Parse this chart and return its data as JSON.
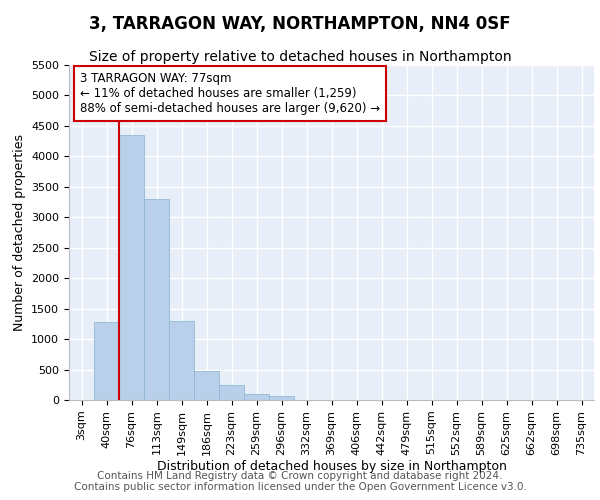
{
  "title": "3, TARRAGON WAY, NORTHAMPTON, NN4 0SF",
  "subtitle": "Size of property relative to detached houses in Northampton",
  "xlabel": "Distribution of detached houses by size in Northampton",
  "ylabel": "Number of detached properties",
  "categories": [
    "3sqm",
    "40sqm",
    "76sqm",
    "113sqm",
    "149sqm",
    "186sqm",
    "223sqm",
    "259sqm",
    "296sqm",
    "332sqm",
    "369sqm",
    "406sqm",
    "442sqm",
    "479sqm",
    "515sqm",
    "552sqm",
    "589sqm",
    "625sqm",
    "662sqm",
    "698sqm",
    "735sqm"
  ],
  "values": [
    0,
    1280,
    4350,
    3300,
    1290,
    480,
    240,
    100,
    70,
    0,
    0,
    0,
    0,
    0,
    0,
    0,
    0,
    0,
    0,
    0,
    0
  ],
  "bar_color": "#b8d0ea",
  "bar_edge_color": "#92b8d8",
  "vline_color": "#cc0000",
  "vline_x_idx": 2,
  "annotation_text": "3 TARRAGON WAY: 77sqm\n← 11% of detached houses are smaller (1,259)\n88% of semi-detached houses are larger (9,620) →",
  "annotation_box_facecolor": "#ffffff",
  "annotation_box_edgecolor": "#cc0000",
  "ylim": [
    0,
    5500
  ],
  "yticks": [
    0,
    500,
    1000,
    1500,
    2000,
    2500,
    3000,
    3500,
    4000,
    4500,
    5000,
    5500
  ],
  "footer_text": "Contains HM Land Registry data © Crown copyright and database right 2024.\nContains public sector information licensed under the Open Government Licence v3.0.",
  "bg_color": "#ffffff",
  "plot_bg_color": "#e8eef8",
  "grid_color": "#ffffff",
  "title_fontsize": 12,
  "subtitle_fontsize": 10,
  "xlabel_fontsize": 9,
  "ylabel_fontsize": 9,
  "tick_fontsize": 8,
  "annotation_fontsize": 8.5,
  "footer_fontsize": 7.5
}
